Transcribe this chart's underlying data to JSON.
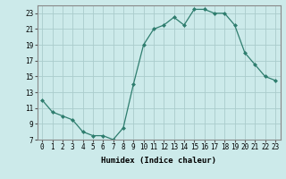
{
  "x": [
    0,
    1,
    2,
    3,
    4,
    5,
    6,
    7,
    8,
    9,
    10,
    11,
    12,
    13,
    14,
    15,
    16,
    17,
    18,
    19,
    20,
    21,
    22,
    23
  ],
  "y": [
    12,
    10.5,
    10,
    9.5,
    8,
    7.5,
    7.5,
    7,
    8.5,
    14,
    19,
    21,
    21.5,
    22.5,
    21.5,
    23.5,
    23.5,
    23,
    23,
    21.5,
    18,
    16.5,
    15,
    14.5
  ],
  "line_color": "#2e7d6e",
  "marker": "D",
  "marker_size": 2,
  "bg_color": "#cceaea",
  "grid_color": "#aacccc",
  "xlabel": "Humidex (Indice chaleur)",
  "xlim": [
    -0.5,
    23.5
  ],
  "ylim": [
    7,
    24
  ],
  "yticks": [
    7,
    9,
    11,
    13,
    15,
    17,
    19,
    21,
    23
  ],
  "xticks": [
    0,
    1,
    2,
    3,
    4,
    5,
    6,
    7,
    8,
    9,
    10,
    11,
    12,
    13,
    14,
    15,
    16,
    17,
    18,
    19,
    20,
    21,
    22,
    23
  ],
  "xlabel_fontsize": 6.5,
  "tick_fontsize": 5.5
}
